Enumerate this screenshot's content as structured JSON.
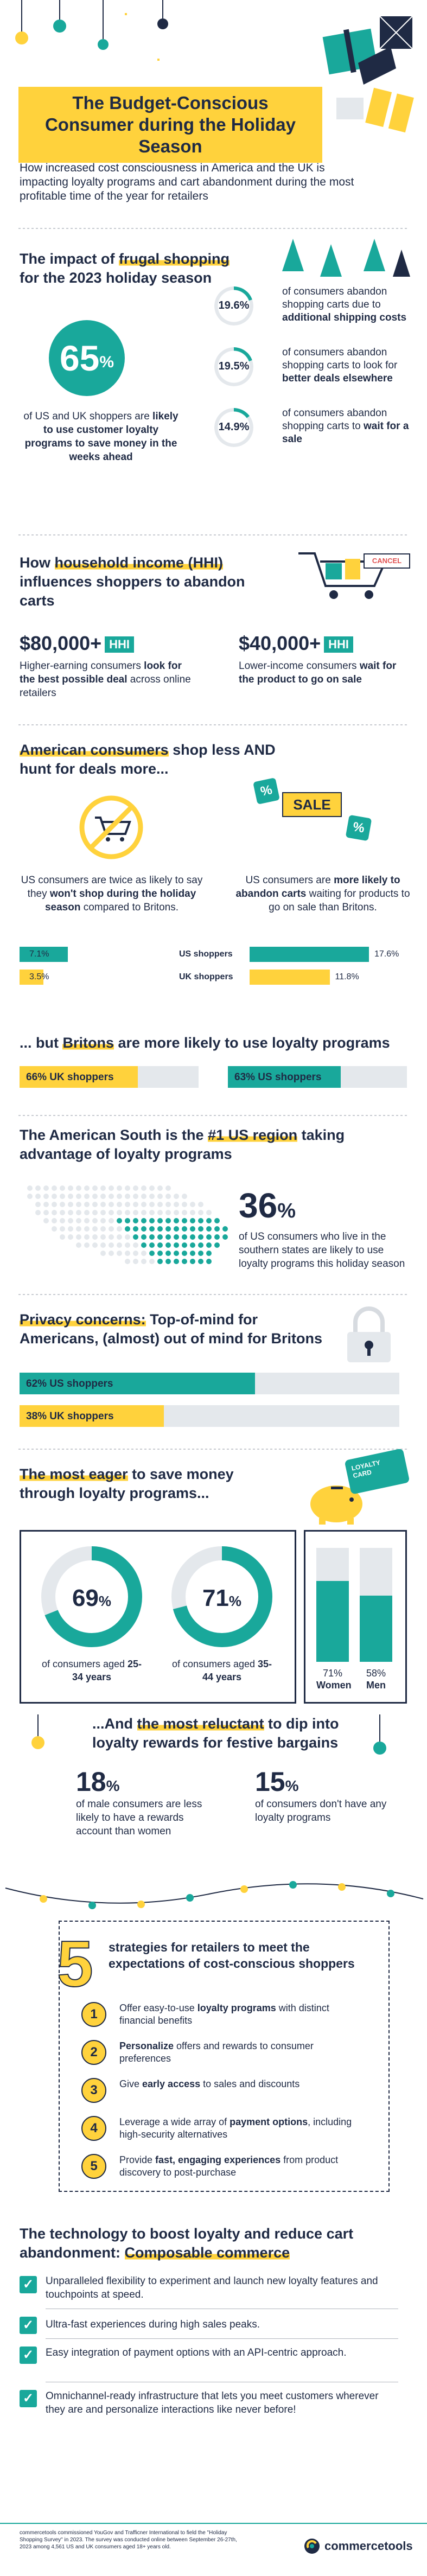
{
  "header": {
    "title": "The Budget-Conscious Consumer during the Holiday Season",
    "subtitle": "How increased cost consciousness in America and the UK is impacting loyalty programs and cart abandonment during the most profitable time of the year for retailers"
  },
  "frugal": {
    "heading_pre": "The impact of ",
    "heading_hl": "frugal shopping",
    "heading_post": " for the 2023 holiday season",
    "big_pct": "65",
    "big_pct_sign": "%",
    "big_text_plain": "of US and UK shoppers are ",
    "big_text_bold": "likely to use customer loyalty programs to save money in the weeks ahead",
    "stats": [
      {
        "pct": "19.6%",
        "plain": "of consumers abandon shopping carts due to ",
        "bold": "additional shipping costs",
        "value": 19.6
      },
      {
        "pct": "19.5%",
        "plain": "of consumers abandon shopping carts to look for ",
        "bold": "better deals elsewhere",
        "value": 19.5
      },
      {
        "pct": "14.9%",
        "plain": "of consumers abandon shopping carts to ",
        "bold": "wait for a sale",
        "value": 14.9
      }
    ]
  },
  "hhi": {
    "heading_pre": "How ",
    "heading_hl": "household income (HHI)",
    "heading_post": " influences shoppers to abandon carts",
    "cancel_label": "CANCEL",
    "left_amount": "$80,000+",
    "left_badge": "HHI",
    "left_text": "Higher-earning consumers ",
    "left_bold": "look for the best possible deal",
    "left_text2": " across online retailers",
    "right_amount": "$40,000+",
    "right_badge": "HHI",
    "right_text": "Lower-income consumers ",
    "right_bold": "wait for the product to go on sale"
  },
  "shopless": {
    "heading_hl": "American consumers",
    "heading_post": " shop less AND hunt for deals more...",
    "sale_label": "SALE",
    "left_text": "US consumers are twice as likely to say they ",
    "left_bold": "won't shop during the holiday season",
    "left_text2": " compared to Britons.",
    "right_text": "US consumers are ",
    "right_bold": "more likely to abandon carts",
    "right_text2": " waiting for products to go on sale than Britons.",
    "rows": [
      {
        "left": "7.1%",
        "left_value": 7.1,
        "mid": "US shoppers",
        "right": "17.6%",
        "right_value": 17.6,
        "color": "#19a89b"
      },
      {
        "left": "3.5%",
        "left_value": 3.5,
        "mid": "UK shoppers",
        "right": "11.8%",
        "right_value": 11.8,
        "color": "#ffd23c"
      }
    ]
  },
  "britons": {
    "heading_pre": "... but ",
    "heading_hl": "Britons",
    "heading_post": " are more likely to use loyalty programs",
    "left": "66% UK shoppers",
    "left_value": 66,
    "right": "63% US shoppers",
    "right_value": 63
  },
  "south": {
    "heading_pre": "The American South is the ",
    "heading_hl": "#1 US region",
    "heading_post": " taking advantage of loyalty programs",
    "pct": "36",
    "pct_sign": "%",
    "text": "of US consumers who live in the southern states are likely to use loyalty programs this holiday season"
  },
  "privacy": {
    "heading_hl": "Privacy concerns:",
    "heading_post": " Top-of-mind for Americans, (almost) out of mind for Britons",
    "bars": [
      {
        "label": "62% US shoppers",
        "value": 62,
        "color": "#19a89b"
      },
      {
        "label": "38% UK shoppers",
        "value": 38,
        "color": "#ffd23c"
      }
    ]
  },
  "eager": {
    "heading_hl": "The most eager",
    "heading_post": " to save money through loyalty programs...",
    "card_label": "LOYALTY CARD",
    "donuts": [
      {
        "pct": "69",
        "value": 69,
        "text": "of consumers aged ",
        "bold": "25-34 years"
      },
      {
        "pct": "71",
        "value": 71,
        "text": "of consumers aged ",
        "bold": "35-44 years"
      }
    ],
    "gender": [
      {
        "pct": "71%",
        "value": 71,
        "label": "Women"
      },
      {
        "pct": "58%",
        "value": 58,
        "label": "Men"
      }
    ]
  },
  "reluctant": {
    "heading_pre": "...And ",
    "heading_hl": "the most reluctant",
    "heading_post": " to dip into loyalty rewards for festive bargains",
    "left_pct": "18",
    "left_text": "of male consumers are less likely to have a rewards account than women",
    "right_pct": "15",
    "right_text": "of consumers don't have any loyalty programs",
    "pct_sign": "%"
  },
  "strategies": {
    "big_num": "5",
    "heading": "strategies for retailers to meet the expectations of cost-conscious shoppers",
    "items": [
      {
        "n": "1",
        "pre": "Offer easy-to-use ",
        "bold": "loyalty programs",
        "post": " with distinct financial benefits"
      },
      {
        "n": "2",
        "pre": "",
        "bold": "Personalize",
        "post": " offers and rewards to consumer preferences"
      },
      {
        "n": "3",
        "pre": "Give ",
        "bold": "early access",
        "post": " to sales and discounts"
      },
      {
        "n": "4",
        "pre": "Leverage a wide array of ",
        "bold": "payment options",
        "post": ", including high-security alternatives"
      },
      {
        "n": "5",
        "pre": "Provide ",
        "bold": "fast, engaging experiences",
        "post": " from product discovery to post-purchase"
      }
    ]
  },
  "tech": {
    "heading_pre": "The technology to boost loyalty and reduce cart abandonment: ",
    "heading_hl": "Composable commerce",
    "items": [
      "Unparalleled flexibility to experiment and launch new loyalty features and touchpoints at speed.",
      "Ultra-fast experiences during high sales peaks.",
      "Easy integration of payment options with an API-centric approach.",
      "Omnichannel-ready infrastructure that lets you meet customers wherever they are and personalize interactions like never before!"
    ]
  },
  "footer": {
    "note": "commercetools commissioned YouGov and Trafficner International to field the \"Holiday Shopping Survey\" in 2023. The survey was conducted online between September 26-27th, 2023 among 4,561 US and UK consumers aged 18+ years old.",
    "brand": "commercetools"
  },
  "colors": {
    "navy": "#1f2a44",
    "teal": "#19a89b",
    "yellow": "#ffd23c",
    "grey": "#e4e8ec"
  }
}
